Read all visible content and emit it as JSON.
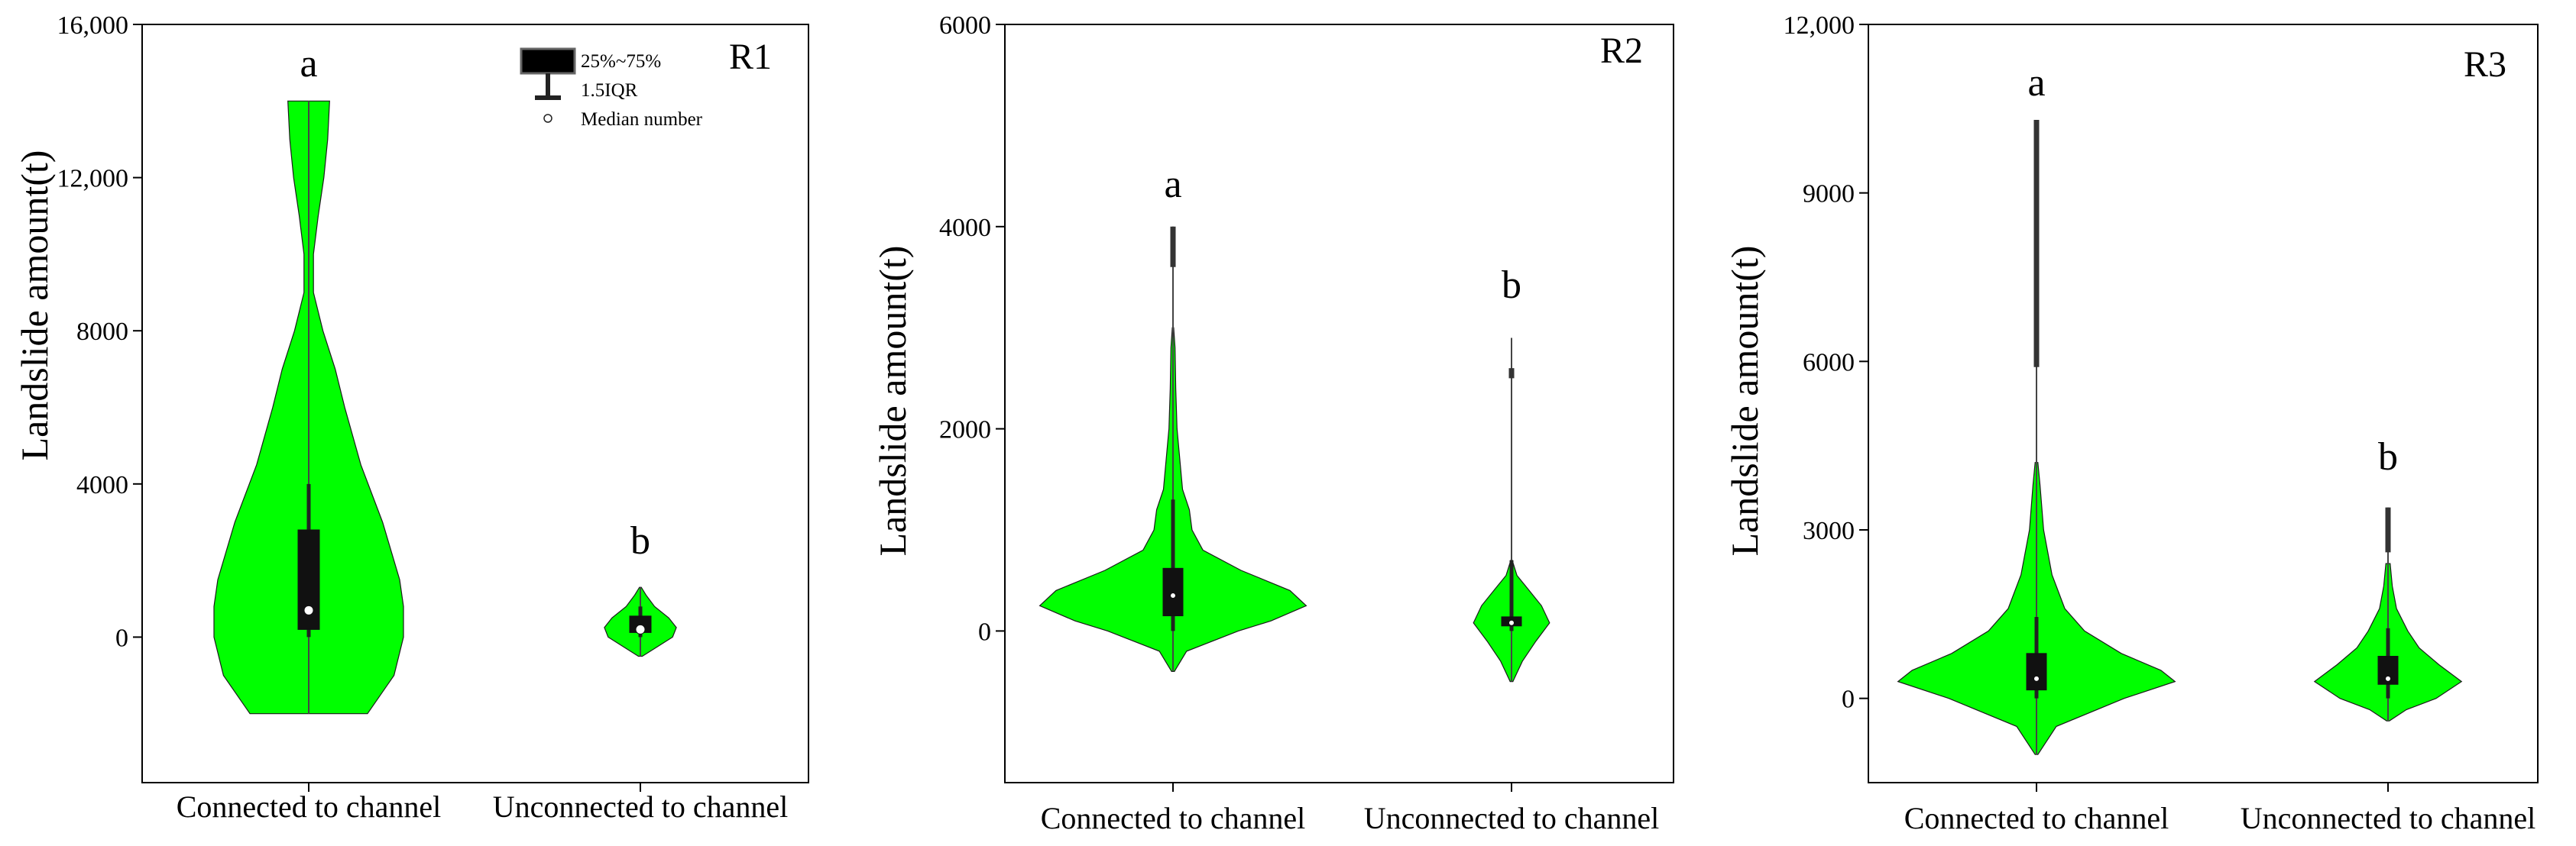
{
  "chart_data": [
    {
      "type": "violin",
      "title": "R1",
      "ylabel": "Landslide amount(t)",
      "xlabel": "",
      "categories": [
        "Connected to channel",
        "Unconnected to channel"
      ],
      "ylim": [
        -3800,
        16000
      ],
      "yticks": [
        0,
        4000,
        8000,
        12000,
        16000
      ],
      "ytick_labels": [
        "0",
        "4000",
        "8000",
        "12,000",
        "16,000"
      ],
      "fill_color": "#00ff00",
      "legend": {
        "iqr_label": "25%~75%",
        "whisker_label": "1.5IQR",
        "median_label": "Median number"
      },
      "groups": [
        {
          "category": "Connected to channel",
          "significance": "a",
          "min": -2000,
          "max": 14000,
          "q1": 200,
          "median": 700,
          "q3": 2800,
          "whisker_low": 0,
          "whisker_high": 4000,
          "profile": [
            [
              -2000,
              0.62
            ],
            [
              -1000,
              0.9
            ],
            [
              0,
              1.0
            ],
            [
              800,
              1.0
            ],
            [
              1500,
              0.96
            ],
            [
              3000,
              0.78
            ],
            [
              4500,
              0.55
            ],
            [
              6000,
              0.38
            ],
            [
              7000,
              0.28
            ],
            [
              8000,
              0.15
            ],
            [
              9000,
              0.05
            ],
            [
              10000,
              0.05
            ],
            [
              11000,
              0.1
            ],
            [
              12000,
              0.16
            ],
            [
              13000,
              0.2
            ],
            [
              14000,
              0.22
            ]
          ]
        },
        {
          "category": "Unconnected to channel",
          "significance": "b",
          "min": -500,
          "max": 1300,
          "q1": 120,
          "median": 200,
          "q3": 550,
          "whisker_low": 0,
          "whisker_high": 800,
          "profile": [
            [
              -500,
              0.02
            ],
            [
              -250,
              0.18
            ],
            [
              0,
              0.34
            ],
            [
              250,
              0.38
            ],
            [
              500,
              0.3
            ],
            [
              800,
              0.15
            ],
            [
              1100,
              0.06
            ],
            [
              1300,
              0.01
            ]
          ]
        }
      ]
    },
    {
      "type": "violin",
      "title": "R2",
      "ylabel": "Landslide amount(t)",
      "xlabel": "",
      "categories": [
        "Connected to channel",
        "Unconnected to channel"
      ],
      "ylim": [
        -1500,
        6000
      ],
      "yticks": [
        0,
        2000,
        4000,
        6000
      ],
      "ytick_labels": [
        "0",
        "2000",
        "4000",
        "6000"
      ],
      "fill_color": "#00ff00",
      "groups": [
        {
          "category": "Connected to channel",
          "significance": "a",
          "min": -400,
          "max": 4000,
          "q1": 150,
          "median": 350,
          "q3": 620,
          "whisker_low": 0,
          "whisker_high": 1300,
          "outlier_range": [
            3600,
            4000
          ],
          "profile": [
            [
              -400,
              0.01
            ],
            [
              -200,
              0.1
            ],
            [
              0,
              0.48
            ],
            [
              100,
              0.72
            ],
            [
              250,
              0.98
            ],
            [
              400,
              0.86
            ],
            [
              600,
              0.5
            ],
            [
              800,
              0.22
            ],
            [
              1000,
              0.14
            ],
            [
              1200,
              0.12
            ],
            [
              1400,
              0.07
            ],
            [
              1700,
              0.05
            ],
            [
              2000,
              0.03
            ],
            [
              2400,
              0.02
            ],
            [
              2800,
              0.015
            ],
            [
              3000,
              0.005
            ]
          ]
        },
        {
          "category": "Unconnected to channel",
          "significance": "b",
          "min": -500,
          "max": 2900,
          "q1": 50,
          "median": 80,
          "q3": 140,
          "whisker_low": 0,
          "whisker_high": 700,
          "outlier_range": [
            2500,
            2600
          ],
          "profile": [
            [
              -500,
              0.01
            ],
            [
              -300,
              0.08
            ],
            [
              -100,
              0.18
            ],
            [
              80,
              0.28
            ],
            [
              250,
              0.22
            ],
            [
              450,
              0.1
            ],
            [
              550,
              0.04
            ],
            [
              700,
              0.005
            ]
          ]
        }
      ]
    },
    {
      "type": "violin",
      "title": "R3",
      "ylabel": "Landslide amount(t)",
      "xlabel": "",
      "categories": [
        "Connected to channel",
        "Unconnected to channel"
      ],
      "ylim": [
        -1500,
        12000
      ],
      "yticks": [
        0,
        3000,
        6000,
        9000,
        12000
      ],
      "ytick_labels": [
        "0",
        "3000",
        "6000",
        "9000",
        "12,000"
      ],
      "fill_color": "#00ff00",
      "groups": [
        {
          "category": "Connected to channel",
          "significance": "a",
          "min": -1000,
          "max": 10300,
          "q1": 150,
          "median": 350,
          "q3": 800,
          "whisker_low": 0,
          "whisker_high": 1450,
          "outlier_range": [
            5900,
            10300
          ],
          "profile": [
            [
              -1000,
              0.01
            ],
            [
              -500,
              0.14
            ],
            [
              0,
              0.62
            ],
            [
              300,
              0.98
            ],
            [
              500,
              0.88
            ],
            [
              800,
              0.6
            ],
            [
              1200,
              0.34
            ],
            [
              1600,
              0.2
            ],
            [
              2200,
              0.11
            ],
            [
              3000,
              0.05
            ],
            [
              3800,
              0.025
            ],
            [
              4200,
              0.01
            ]
          ]
        },
        {
          "category": "Unconnected to channel",
          "significance": "b",
          "min": -400,
          "max": 3400,
          "q1": 250,
          "median": 350,
          "q3": 750,
          "whisker_low": 0,
          "whisker_high": 1250,
          "outlier_range": [
            2600,
            3400
          ],
          "profile": [
            [
              -400,
              0.01
            ],
            [
              -200,
              0.13
            ],
            [
              0,
              0.34
            ],
            [
              300,
              0.52
            ],
            [
              600,
              0.36
            ],
            [
              900,
              0.22
            ],
            [
              1200,
              0.14
            ],
            [
              1600,
              0.06
            ],
            [
              2000,
              0.03
            ],
            [
              2400,
              0.015
            ]
          ]
        }
      ]
    }
  ]
}
